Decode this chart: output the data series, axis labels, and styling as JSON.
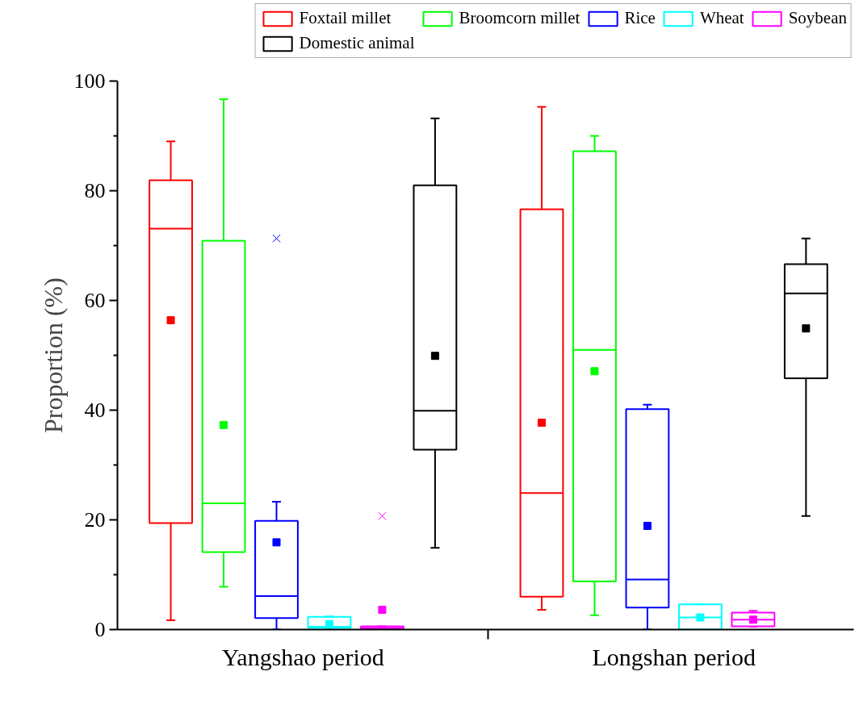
{
  "chart_data": {
    "type": "box",
    "ylabel": "Proportion (%)",
    "categories": [
      "Yangshao period",
      "Longshan period"
    ],
    "ylim": [
      0,
      100
    ],
    "yticks": [
      0,
      20,
      40,
      60,
      80,
      100
    ],
    "grid": false,
    "legend": "top",
    "series": [
      {
        "name": "Foxtail millet",
        "color": "#ff0000",
        "boxes": [
          {
            "low": 1.7,
            "q1": 19.4,
            "median": 73.1,
            "q3": 81.9,
            "high": 89,
            "mean": 56.4
          },
          {
            "low": 3.6,
            "q1": 6.0,
            "median": 24.9,
            "q3": 76.6,
            "high": 95.3,
            "mean": 37.7
          }
        ]
      },
      {
        "name": "Broomcorn millet",
        "color": "#00ff00",
        "boxes": [
          {
            "low": 7.8,
            "q1": 14.1,
            "median": 23.0,
            "q3": 70.9,
            "high": 96.7,
            "mean": 37.3
          },
          {
            "low": 2.6,
            "q1": 8.8,
            "median": 51.0,
            "q3": 87.2,
            "high": 90.0,
            "mean": 47.1
          }
        ]
      },
      {
        "name": "Rice",
        "color": "#0000ff",
        "boxes": [
          {
            "low": 0,
            "q1": 2.1,
            "median": 6.1,
            "q3": 19.8,
            "high": 23.3,
            "mean": 15.9,
            "outliers": [
              71.3
            ]
          },
          {
            "low": 0,
            "q1": 4.0,
            "median": 9.1,
            "q3": 40.2,
            "high": 41.0,
            "mean": 18.9
          }
        ]
      },
      {
        "name": "Wheat",
        "color": "#00ffff",
        "boxes": [
          {
            "low": 0,
            "q1": 0.3,
            "median": 0.5,
            "q3": 2.3,
            "high": 2.4,
            "mean": 1.0
          },
          {
            "low": 0,
            "q1": 0,
            "median": 2.2,
            "q3": 4.6,
            "high": 4.6,
            "mean": 2.2
          }
        ]
      },
      {
        "name": "Soybean",
        "color": "#ff00ff",
        "boxes": [
          {
            "low": 0,
            "q1": 0.1,
            "median": 0.3,
            "q3": 0.6,
            "high": 0.6,
            "mean": 3.6,
            "outliers": [
              20.7
            ]
          },
          {
            "low": 0.5,
            "q1": 0.6,
            "median": 1.8,
            "q3": 3.1,
            "high": 3.4,
            "mean": 1.8
          }
        ]
      },
      {
        "name": "Domestic animal",
        "color": "#000000",
        "boxes": [
          {
            "low": 14.9,
            "q1": 32.8,
            "median": 39.9,
            "q3": 81.0,
            "high": 93.2,
            "mean": 49.9
          },
          {
            "low": 20.7,
            "q1": 45.8,
            "median": 61.3,
            "q3": 66.6,
            "high": 71.3,
            "mean": 54.9
          }
        ]
      }
    ]
  }
}
